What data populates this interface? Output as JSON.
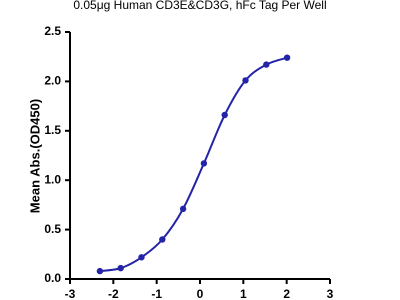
{
  "chart_data": {
    "type": "scatter",
    "title": "0.05μg Human CD3E&CD3G, hFc Tag Per Well",
    "y_label": "Mean Abs.(OD450)",
    "series": [
      {
        "color": "#2424a8",
        "x": [
          -2.31,
          -1.83,
          -1.35,
          -0.87,
          -0.39,
          0.09,
          0.57,
          1.05,
          1.53,
          2.01
        ],
        "values": [
          0.08,
          0.11,
          0.22,
          0.4,
          0.71,
          1.17,
          1.66,
          2.01,
          2.17,
          2.24
        ]
      }
    ],
    "fit_line": true,
    "xlim": [
      -3,
      3
    ],
    "xticks": [
      -3,
      -2,
      -1,
      0,
      1,
      2,
      3
    ],
    "ylim": [
      0,
      2.5
    ],
    "yticks": [
      {
        "value": 0,
        "label": "0.0"
      },
      0.5,
      {
        "value": 1,
        "label": "1.0"
      },
      1.5,
      {
        "value": 2,
        "label": "2.0"
      },
      2.5
    ]
  }
}
